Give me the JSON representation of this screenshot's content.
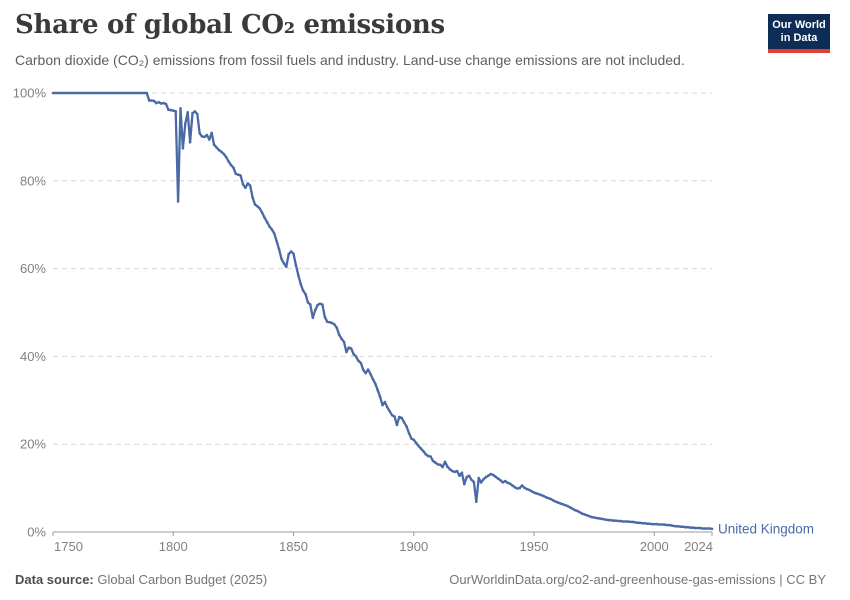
{
  "header": {
    "title": "Share of global CO₂ emissions",
    "subtitle": "Carbon dioxide (CO₂) emissions from fossil fuels and industry. Land-use change emissions are not included.",
    "logo": {
      "line1": "Our World",
      "line2": "in Data",
      "bg": "#0d2d56",
      "accent": "#e23d33"
    }
  },
  "chart_data": {
    "type": "line",
    "title": "Share of global CO₂ emissions",
    "xlabel": "",
    "ylabel": "",
    "xlim": [
      1750,
      2024
    ],
    "ylim": [
      0,
      100
    ],
    "grid": "dashed-horizontal",
    "legend_position": "end-of-line",
    "colors": {
      "grid": "#d8d8d8",
      "axis": "#9b9b9b",
      "tick_label": "#818181"
    },
    "y_ticks": [
      {
        "value": 0,
        "label": "0%"
      },
      {
        "value": 20,
        "label": "20%"
      },
      {
        "value": 40,
        "label": "40%"
      },
      {
        "value": 60,
        "label": "60%"
      },
      {
        "value": 80,
        "label": "80%"
      },
      {
        "value": 100,
        "label": "100%"
      }
    ],
    "x_ticks": [
      {
        "value": 1750,
        "label": "1750"
      },
      {
        "value": 1800,
        "label": "1800"
      },
      {
        "value": 1850,
        "label": "1850"
      },
      {
        "value": 1900,
        "label": "1900"
      },
      {
        "value": 1950,
        "label": "1950"
      },
      {
        "value": 2000,
        "label": "2000"
      },
      {
        "value": 2024,
        "label": "2024"
      }
    ],
    "series": [
      {
        "name": "United Kingdom",
        "color": "#4a69a5",
        "x_start": 1750,
        "x_step": 1,
        "unit": "%",
        "values": [
          100,
          100,
          100,
          100,
          100,
          100,
          100,
          100,
          100,
          100,
          100,
          100,
          100,
          100,
          100,
          100,
          100,
          100,
          100,
          100,
          100,
          100,
          100,
          100,
          100,
          100,
          100,
          100,
          100,
          100,
          100,
          100,
          100,
          100,
          100,
          100,
          100,
          100,
          100,
          100,
          98.3,
          98.3,
          98.2,
          97.7,
          97.9,
          97.6,
          97.7,
          97.5,
          96.2,
          96.1,
          96.0,
          95.8,
          75.3,
          96.5,
          87.4,
          93.0,
          95.6,
          88.8,
          95.4,
          95.8,
          95.2,
          90.8,
          90.1,
          90.0,
          90.4,
          89.4,
          90.9,
          88.2,
          87.6,
          87.0,
          86.6,
          86.1,
          85.4,
          84.4,
          83.6,
          83.0,
          81.6,
          81.4,
          81.2,
          79.2,
          78.4,
          79.4,
          78.9,
          76.2,
          74.6,
          74.2,
          73.7,
          72.7,
          71.6,
          70.6,
          69.6,
          68.9,
          68.0,
          66.2,
          64.4,
          62.2,
          61.2,
          60.4,
          63.3,
          63.9,
          63.4,
          60.8,
          58.5,
          56.5,
          55.0,
          54.2,
          52.3,
          51.8,
          48.8,
          50.5,
          51.7,
          52.0,
          51.8,
          49.0,
          47.9,
          47.8,
          47.6,
          47.3,
          46.5,
          44.9,
          44.0,
          43.3,
          41.0,
          42.0,
          41.8,
          40.5,
          40.0,
          39.0,
          38.5,
          36.9,
          36.2,
          37.0,
          36.0,
          34.8,
          33.8,
          32.3,
          30.8,
          28.9,
          29.6,
          28.4,
          27.5,
          26.6,
          26.3,
          24.4,
          26.2,
          26.0,
          25.0,
          24.0,
          22.5,
          21.3,
          21.0,
          20.3,
          19.6,
          19.0,
          18.4,
          17.7,
          17.3,
          17.2,
          16.2,
          15.8,
          15.4,
          15.3,
          14.8,
          16.0,
          14.9,
          14.3,
          13.9,
          13.7,
          13.9,
          12.8,
          13.5,
          10.9,
          12.5,
          12.8,
          11.9,
          11.4,
          6.9,
          12.3,
          11.3,
          12.0,
          12.5,
          12.8,
          13.2,
          13.0,
          12.6,
          12.2,
          11.8,
          11.3,
          11.6,
          11.2,
          11.0,
          10.6,
          10.2,
          9.9,
          10.0,
          10.6,
          10.1,
          9.8,
          9.6,
          9.3,
          9.0,
          8.8,
          8.6,
          8.4,
          8.2,
          7.9,
          7.7,
          7.5,
          7.2,
          6.9,
          6.7,
          6.5,
          6.3,
          6.1,
          5.9,
          5.6,
          5.3,
          5.0,
          4.8,
          4.5,
          4.2,
          4.0,
          3.8,
          3.6,
          3.4,
          3.3,
          3.2,
          3.1,
          3.0,
          2.9,
          2.8,
          2.7,
          2.7,
          2.6,
          2.6,
          2.5,
          2.5,
          2.4,
          2.4,
          2.4,
          2.3,
          2.3,
          2.2,
          2.1,
          2.1,
          2.0,
          2.0,
          1.9,
          1.9,
          1.8,
          1.8,
          1.8,
          1.7,
          1.7,
          1.7,
          1.6,
          1.6,
          1.5,
          1.4,
          1.3,
          1.3,
          1.2,
          1.2,
          1.1,
          1.1,
          1.0,
          1.0,
          0.9,
          0.9,
          0.9,
          0.8,
          0.8,
          0.8,
          0.8,
          0.7
        ]
      }
    ]
  },
  "footer": {
    "datasource_label": "Data source:",
    "datasource_value": " Global Carbon Budget (2025)",
    "link": "OurWorldinData.org/co2-and-greenhouse-gas-emissions | CC BY"
  }
}
